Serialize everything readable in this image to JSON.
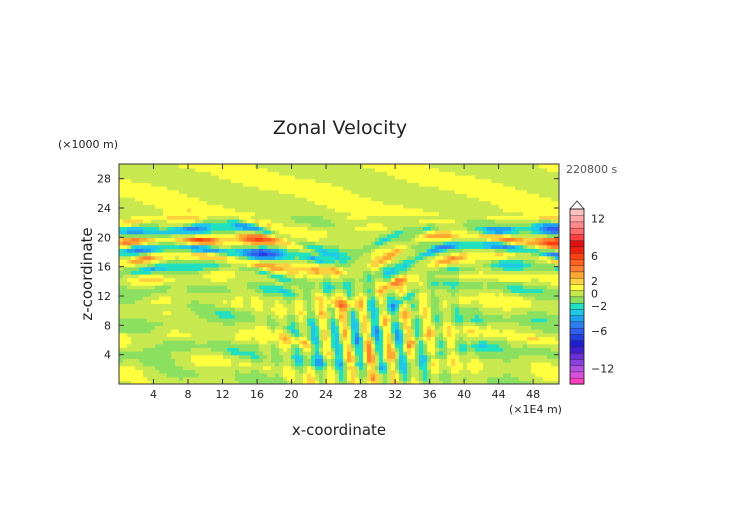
{
  "chart_data": {
    "type": "heatmap",
    "title": "Zonal Velocity",
    "xlabel": "x-coordinate",
    "ylabel": "z-coordinate",
    "x_unit": "(×1E4 m)",
    "y_unit": "(×1000 m)",
    "time_label": "220800 s",
    "xlim": [
      0,
      51
    ],
    "ylim": [
      0,
      30
    ],
    "xticks": [
      "4",
      "8",
      "12",
      "16",
      "20",
      "24",
      "28",
      "32",
      "36",
      "40",
      "44",
      "48"
    ],
    "yticks": [
      "4",
      "8",
      "12",
      "16",
      "20",
      "24",
      "28"
    ],
    "colorbar": {
      "levels": [
        -14,
        -13,
        -12,
        -11,
        -10,
        -9,
        -8,
        -7,
        -6,
        -5,
        -4,
        -3,
        -2,
        -1,
        0,
        1,
        2,
        3,
        4,
        5,
        6,
        7,
        8,
        9,
        10,
        11,
        12,
        13,
        14
      ],
      "colors": [
        "#ff3fbf",
        "#d94fd9",
        "#b04fe0",
        "#8a3fe0",
        "#6a2fd8",
        "#3f1fcf",
        "#1f1fd0",
        "#2040e0",
        "#2f5fef",
        "#2f7ff0",
        "#1fa0f0",
        "#1fc8e8",
        "#20e0c0",
        "#8ce060",
        "#c8e84f",
        "#ffff3f",
        "#ffd23f",
        "#ffa830",
        "#ff8030",
        "#ff5f20",
        "#ff3f10",
        "#ee2010",
        "#e01010",
        "#ff4040",
        "#ff6a6a",
        "#ff8a8a",
        "#ffa8a8",
        "#ffc0c0"
      ],
      "tick_labels": [
        "12",
        "6",
        "2",
        "0",
        "−2",
        "−6",
        "−12"
      ],
      "tick_values": [
        12,
        6,
        2,
        0,
        -2,
        -6,
        -12
      ]
    },
    "field_description_bands": [
      {
        "z": 22.2,
        "u": 2.5
      },
      {
        "z": 20.5,
        "u": -5
      },
      {
        "z": 19.2,
        "u": 6
      },
      {
        "z": 17.8,
        "u": -6
      },
      {
        "z": 16.6,
        "u": 4
      },
      {
        "z": 15.4,
        "u": -3
      },
      {
        "z": 14.0,
        "u": 2.5
      },
      {
        "z": 12.5,
        "u": -2
      },
      {
        "z": 10.5,
        "u": 1.5
      },
      {
        "z": 8.2,
        "u": -1.5
      },
      {
        "z": 6.0,
        "u": 2
      },
      {
        "z": 4.0,
        "u": -2
      },
      {
        "z": 2.0,
        "u": 1
      }
    ]
  }
}
